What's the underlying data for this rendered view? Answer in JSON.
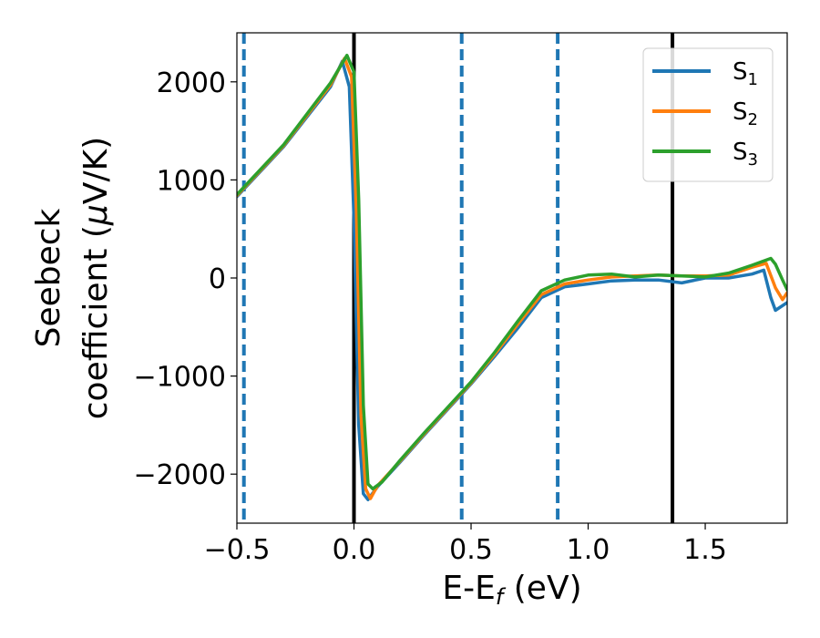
{
  "chart_data": {
    "type": "line",
    "xlabel": "E-E",
    "xlabel_sub": "f",
    "xlabel_unit": " (eV)",
    "ylabel_line1": "Seebeck",
    "ylabel_line2_pre": "coefficient  (",
    "ylabel_mu": "μ",
    "ylabel_line2_post": "V/K)",
    "xlim": [
      -0.5,
      1.85
    ],
    "ylim": [
      -2500,
      2500
    ],
    "x_ticks": [
      -0.5,
      0.0,
      0.5,
      1.0,
      1.5
    ],
    "x_tick_labels": [
      "−0.5",
      "0.0",
      "0.5",
      "1.0",
      "1.5"
    ],
    "y_ticks": [
      2000,
      1000,
      0,
      -1000,
      -2000
    ],
    "y_tick_labels": [
      "2000",
      "1000",
      "0",
      "−1000",
      "−2000"
    ],
    "grid": false,
    "legend_position": "top-right",
    "solid_vlines": [
      0.0,
      1.36
    ],
    "dashed_vlines": [
      -0.47,
      0.46,
      0.87
    ],
    "vline_colors": {
      "solid": "#000000",
      "dashed": "#1f77b4"
    },
    "series": [
      {
        "name_base": "S",
        "name_sub": "1",
        "color": "#1f77b4",
        "x": [
          -0.5,
          -0.3,
          -0.1,
          -0.05,
          -0.02,
          0.0,
          0.02,
          0.04,
          0.06,
          0.1,
          0.2,
          0.3,
          0.4,
          0.5,
          0.6,
          0.7,
          0.8,
          0.9,
          1.0,
          1.1,
          1.2,
          1.3,
          1.4,
          1.5,
          1.6,
          1.7,
          1.75,
          1.78,
          1.8,
          1.85
        ],
        "values": [
          830,
          1340,
          1950,
          2210,
          1950,
          600,
          -1500,
          -2200,
          -2260,
          -2130,
          -1870,
          -1600,
          -1340,
          -1080,
          -800,
          -510,
          -200,
          -90,
          -60,
          -30,
          -20,
          -20,
          -50,
          0,
          0,
          40,
          80,
          -200,
          -330,
          -250
        ]
      },
      {
        "name_base": "S",
        "name_sub": "2",
        "color": "#ff7f0e",
        "x": [
          -0.5,
          -0.3,
          -0.1,
          -0.04,
          -0.01,
          0.01,
          0.03,
          0.05,
          0.07,
          0.1,
          0.2,
          0.3,
          0.4,
          0.5,
          0.6,
          0.7,
          0.8,
          0.9,
          1.0,
          1.1,
          1.2,
          1.3,
          1.4,
          1.5,
          1.6,
          1.7,
          1.76,
          1.8,
          1.83,
          1.85
        ],
        "values": [
          840,
          1350,
          1970,
          2240,
          2050,
          700,
          -1400,
          -2150,
          -2250,
          -2120,
          -1860,
          -1590,
          -1330,
          -1070,
          -780,
          -470,
          -170,
          -60,
          -20,
          10,
          20,
          30,
          20,
          20,
          30,
          110,
          150,
          -100,
          -220,
          -150
        ]
      },
      {
        "name_base": "S",
        "name_sub": "3",
        "color": "#2ca02c",
        "x": [
          -0.5,
          -0.3,
          -0.1,
          -0.03,
          0.0,
          0.02,
          0.04,
          0.06,
          0.08,
          0.12,
          0.2,
          0.3,
          0.4,
          0.5,
          0.6,
          0.7,
          0.8,
          0.9,
          1.0,
          1.1,
          1.2,
          1.3,
          1.4,
          1.5,
          1.6,
          1.7,
          1.78,
          1.8,
          1.83,
          1.85
        ],
        "values": [
          850,
          1360,
          1990,
          2270,
          2100,
          800,
          -1300,
          -2100,
          -2150,
          -2080,
          -1850,
          -1580,
          -1320,
          -1060,
          -760,
          -440,
          -130,
          -20,
          30,
          40,
          10,
          30,
          20,
          10,
          50,
          130,
          200,
          140,
          -20,
          -120
        ]
      }
    ]
  }
}
